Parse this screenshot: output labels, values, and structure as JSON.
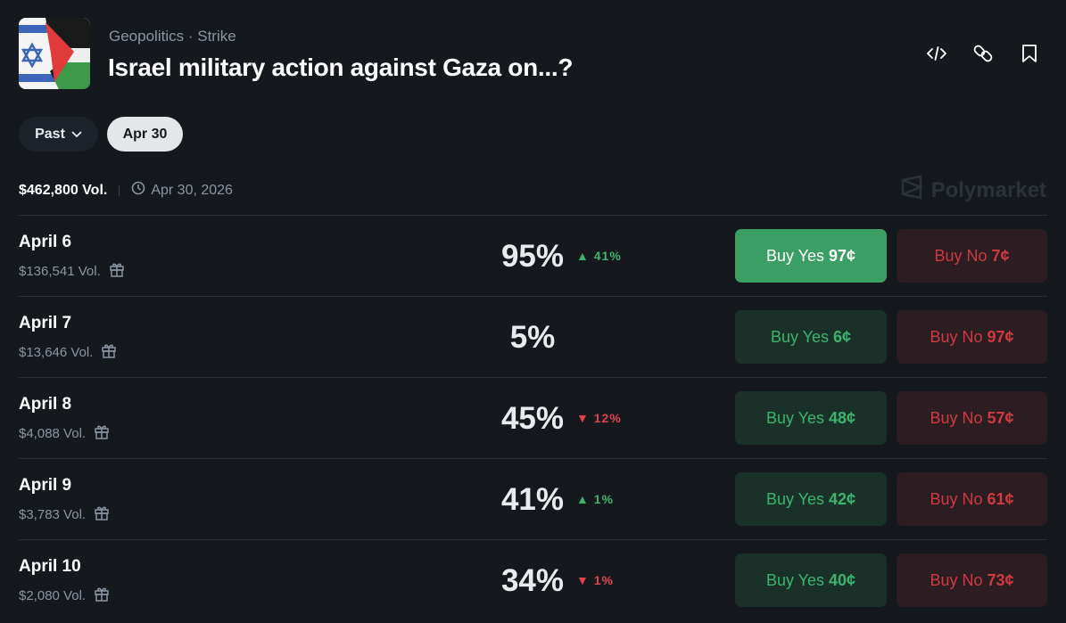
{
  "header": {
    "category": "Geopolitics",
    "subcategory": "Strike",
    "separator": "·",
    "title": "Israel military action against Gaza on...?"
  },
  "toolbar": {
    "icons": [
      "embed-code-icon",
      "link-icon",
      "bookmark-icon"
    ]
  },
  "filters": {
    "past_label": "Past",
    "selected_date": "Apr 30"
  },
  "meta": {
    "volume": "$462,800 Vol.",
    "end_date": "Apr 30, 2026",
    "brand": "Polymarket"
  },
  "colors": {
    "background": "#15191d",
    "yes": "#3db46d",
    "no": "#e2434b",
    "yes_active": "#3b9f63"
  },
  "markets": [
    {
      "name": "April 6",
      "volume": "$136,541 Vol.",
      "probability": "95%",
      "change": "41%",
      "direction": "up",
      "yes_label": "Buy Yes",
      "yes_price": "97¢",
      "no_label": "Buy No",
      "no_price": "7¢"
    },
    {
      "name": "April 7",
      "volume": "$13,646 Vol.",
      "probability": "5%",
      "change": "",
      "direction": "",
      "yes_label": "Buy Yes",
      "yes_price": "6¢",
      "no_label": "Buy No",
      "no_price": "97¢"
    },
    {
      "name": "April 8",
      "volume": "$4,088 Vol.",
      "probability": "45%",
      "change": "12%",
      "direction": "down",
      "yes_label": "Buy Yes",
      "yes_price": "48¢",
      "no_label": "Buy No",
      "no_price": "57¢"
    },
    {
      "name": "April 9",
      "volume": "$3,783 Vol.",
      "probability": "41%",
      "change": "1%",
      "direction": "up",
      "yes_label": "Buy Yes",
      "yes_price": "42¢",
      "no_label": "Buy No",
      "no_price": "61¢"
    },
    {
      "name": "April 10",
      "volume": "$2,080 Vol.",
      "probability": "34%",
      "change": "1%",
      "direction": "down",
      "yes_label": "Buy Yes",
      "yes_price": "40¢",
      "no_label": "Buy No",
      "no_price": "73¢"
    }
  ]
}
